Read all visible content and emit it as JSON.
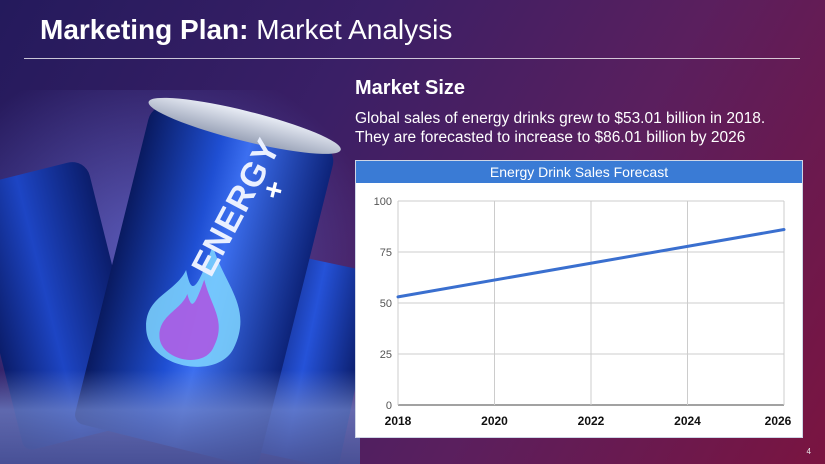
{
  "slide": {
    "title_bold": "Marketing Plan:",
    "title_light": " Market Analysis",
    "page_number": "4"
  },
  "illustration": {
    "can_label": "ENERGY",
    "can_symbol": "+"
  },
  "market": {
    "heading": "Market Size",
    "line1": "Global sales of energy drinks grew to $53.01 billion in 2018.",
    "line2": "They are forecasted to increase to $86.01 billion by 2026"
  },
  "colors": {
    "accent": "#3a7bd5",
    "line": "#3a6fcf"
  },
  "chart_data": {
    "type": "line",
    "title": "Energy Drink Sales Forecast",
    "x": [
      2018,
      2026
    ],
    "x_ticks": [
      "2018",
      "2020",
      "2022",
      "2024",
      "2026"
    ],
    "y_ticks": [
      "0",
      "25",
      "50",
      "75",
      "100"
    ],
    "ylim": [
      0,
      100
    ],
    "series": [
      {
        "values": [
          53.01,
          86.01
        ]
      }
    ]
  }
}
